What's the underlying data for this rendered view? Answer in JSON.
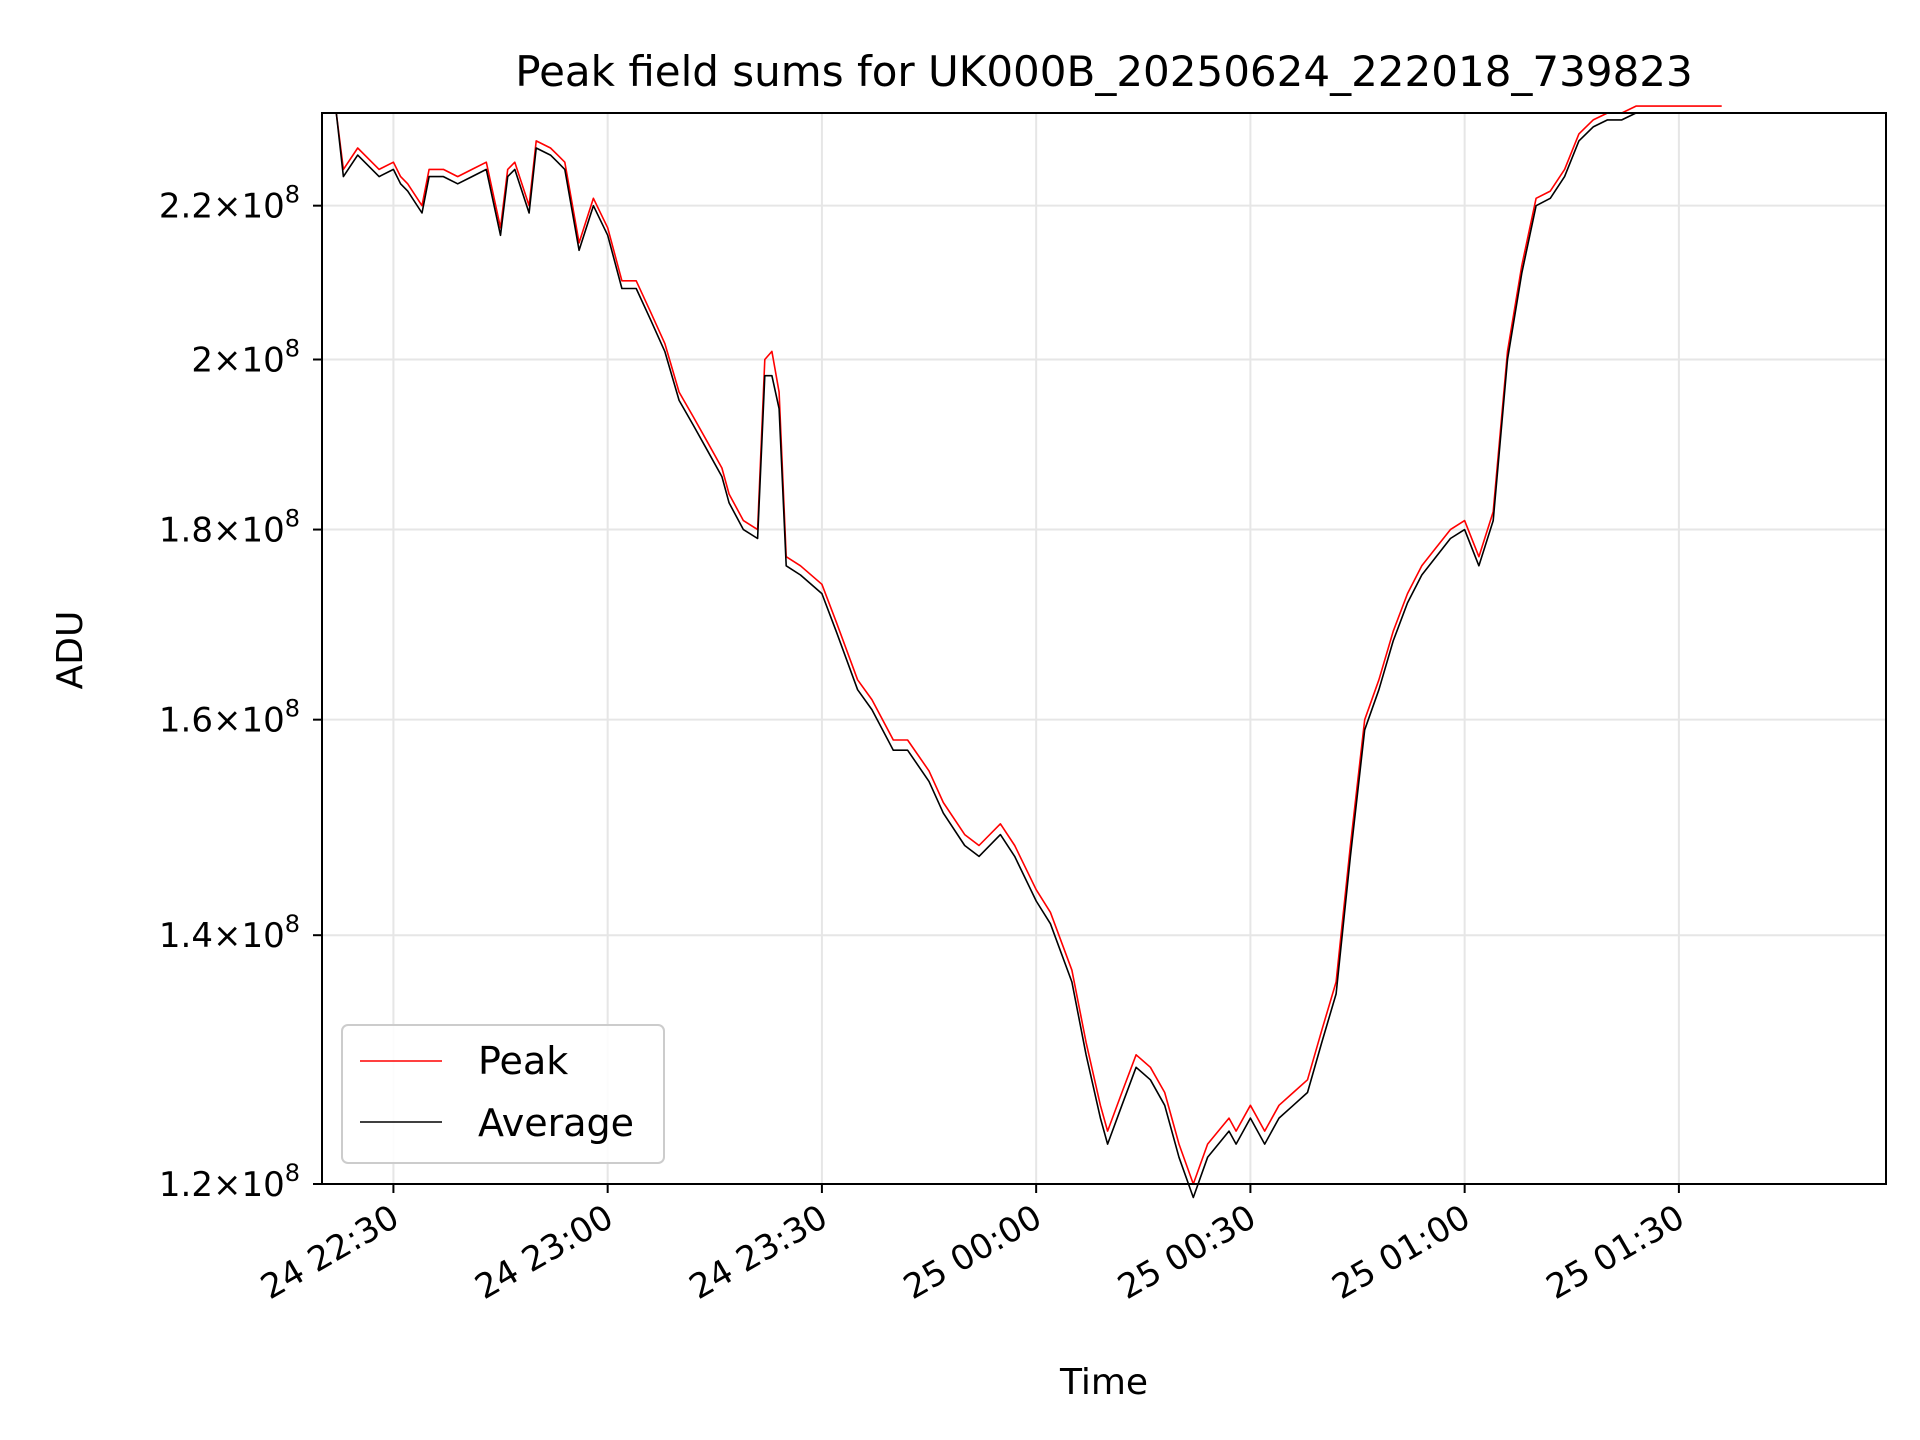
{
  "chart_data": {
    "type": "line",
    "title": "Peak field sums for UK000B_20250624_222018_739823",
    "xlabel": "Time",
    "ylabel": "ADU",
    "yscale": "log",
    "grid": true,
    "legend_position": "lower-left",
    "xlim": [
      "2025-06-24 22:20",
      "2025-06-25 01:59"
    ],
    "ylim": [
      120000000.0,
      233000000.0
    ],
    "x_ticks": [
      "2025-06-24 22:30",
      "2025-06-24 23:00",
      "2025-06-24 23:30",
      "2025-06-25 00:00",
      "2025-06-25 00:30",
      "2025-06-25 01:00",
      "2025-06-25 01:30"
    ],
    "x_tick_labels": [
      "24 22:30",
      "24 23:00",
      "24 23:30",
      "25 00:00",
      "25 00:30",
      "25 01:00",
      "25 01:30"
    ],
    "y_ticks": [
      120000000.0,
      140000000.0,
      160000000.0,
      180000000.0,
      200000000.0,
      220000000.0
    ],
    "y_tick_labels": [
      {
        "mant": "1.2",
        "exp": "8"
      },
      {
        "mant": "1.4",
        "exp": "8"
      },
      {
        "mant": "1.6",
        "exp": "8"
      },
      {
        "mant": "1.8",
        "exp": "8"
      },
      {
        "mant": "2",
        "exp": "8"
      },
      {
        "mant": "2.2",
        "exp": "8"
      }
    ],
    "series": [
      {
        "name": "Peak",
        "color": "#ff0000"
      },
      {
        "name": "Average",
        "color": "#000000"
      }
    ],
    "x": [
      "2025-06-24 22:20",
      "2025-06-24 22:22",
      "2025-06-24 22:23",
      "2025-06-24 22:25",
      "2025-06-24 22:28",
      "2025-06-24 22:30",
      "2025-06-24 22:31",
      "2025-06-24 22:32",
      "2025-06-24 22:34",
      "2025-06-24 22:35",
      "2025-06-24 22:37",
      "2025-06-24 22:39",
      "2025-06-24 22:41",
      "2025-06-24 22:43",
      "2025-06-24 22:45",
      "2025-06-24 22:46",
      "2025-06-24 22:47",
      "2025-06-24 22:49",
      "2025-06-24 22:50",
      "2025-06-24 22:52",
      "2025-06-24 22:53",
      "2025-06-24 22:54",
      "2025-06-24 22:56",
      "2025-06-24 22:58",
      "2025-06-24 23:00",
      "2025-06-24 23:02",
      "2025-06-24 23:04",
      "2025-06-24 23:06",
      "2025-06-24 23:08",
      "2025-06-24 23:10",
      "2025-06-24 23:12",
      "2025-06-24 23:14",
      "2025-06-24 23:16",
      "2025-06-24 23:17",
      "2025-06-24 23:19",
      "2025-06-24 23:21",
      "2025-06-24 23:22",
      "2025-06-24 23:23",
      "2025-06-24 23:24",
      "2025-06-24 23:25",
      "2025-06-24 23:27",
      "2025-06-24 23:30",
      "2025-06-24 23:32",
      "2025-06-24 23:35",
      "2025-06-24 23:37",
      "2025-06-24 23:40",
      "2025-06-24 23:42",
      "2025-06-24 23:45",
      "2025-06-24 23:47",
      "2025-06-24 23:50",
      "2025-06-24 23:52",
      "2025-06-24 23:55",
      "2025-06-24 23:57",
      "2025-06-25 00:00",
      "2025-06-25 00:02",
      "2025-06-25 00:05",
      "2025-06-25 00:07",
      "2025-06-25 00:09",
      "2025-06-25 00:10",
      "2025-06-25 00:12",
      "2025-06-25 00:14",
      "2025-06-25 00:16",
      "2025-06-25 00:18",
      "2025-06-25 00:20",
      "2025-06-25 00:22",
      "2025-06-25 00:24",
      "2025-06-25 00:27",
      "2025-06-25 00:28",
      "2025-06-25 00:30",
      "2025-06-25 00:32",
      "2025-06-25 00:34",
      "2025-06-25 00:36",
      "2025-06-25 00:38",
      "2025-06-25 00:40",
      "2025-06-25 00:42",
      "2025-06-25 00:44",
      "2025-06-25 00:46",
      "2025-06-25 00:48",
      "2025-06-25 00:50",
      "2025-06-25 00:52",
      "2025-06-25 00:54",
      "2025-06-25 00:56",
      "2025-06-25 00:58",
      "2025-06-25 01:00",
      "2025-06-25 01:02",
      "2025-06-25 01:04",
      "2025-06-25 01:06",
      "2025-06-25 01:08",
      "2025-06-25 01:10",
      "2025-06-25 01:12",
      "2025-06-25 01:14",
      "2025-06-25 01:16",
      "2025-06-25 01:18",
      "2025-06-25 01:20",
      "2025-06-25 01:22",
      "2025-06-25 01:24",
      "2025-06-25 01:26",
      "2025-06-25 01:28",
      "2025-06-25 01:30",
      "2025-06-25 01:32",
      "2025-06-25 01:34",
      "2025-06-25 01:36"
    ],
    "peak": [
      233000000.0,
      233000000.0,
      225000000.0,
      228000000.0,
      225000000.0,
      226000000.0,
      224000000.0,
      223000000.0,
      220000000.0,
      225000000.0,
      225000000.0,
      224000000.0,
      225000000.0,
      226000000.0,
      217000000.0,
      225000000.0,
      226000000.0,
      220000000.0,
      229000000.0,
      228000000.0,
      227000000.0,
      226000000.0,
      215000000.0,
      221000000.0,
      217000000.0,
      210000000.0,
      210000000.0,
      206000000.0,
      202000000.0,
      196000000.0,
      193000000.0,
      190000000.0,
      187000000.0,
      184000000.0,
      181000000.0,
      180000000.0,
      200000000.0,
      201000000.0,
      196000000.0,
      177000000.0,
      176000000.0,
      174000000.0,
      170000000.0,
      164000000.0,
      162000000.0,
      158000000.0,
      158000000.0,
      155000000.0,
      152000000.0,
      149000000.0,
      148000000.0,
      150000000.0,
      148000000.0,
      144000000.0,
      142000000.0,
      137000000.0,
      131000000.0,
      126000000.0,
      124000000.0,
      127000000.0,
      130000000.0,
      129000000.0,
      127000000.0,
      123000000.0,
      120000000.0,
      123000000.0,
      125000000.0,
      124000000.0,
      126000000.0,
      124000000.0,
      126000000.0,
      127000000.0,
      128000000.0,
      132000000.0,
      136000000.0,
      148000000.0,
      160000000.0,
      164000000.0,
      169000000.0,
      173000000.0,
      176000000.0,
      178000000.0,
      180000000.0,
      181000000.0,
      177000000.0,
      182000000.0,
      201000000.0,
      212000000.0,
      221000000.0,
      222000000.0,
      225000000.0,
      230000000.0,
      232000000.0,
      233000000.0,
      233000000.0,
      234000000.0,
      234000000.0,
      234000000.0,
      234000000.0,
      234000000.0,
      234000000.0,
      234000000.0
    ],
    "average": [
      233000000.0,
      233000000.0,
      224000000.0,
      227000000.0,
      224000000.0,
      225000000.0,
      223000000.0,
      222000000.0,
      219000000.0,
      224000000.0,
      224000000.0,
      223000000.0,
      224000000.0,
      225000000.0,
      216000000.0,
      224000000.0,
      225000000.0,
      219000000.0,
      228000000.0,
      227000000.0,
      226000000.0,
      225000000.0,
      214000000.0,
      220000000.0,
      216000000.0,
      209000000.0,
      209000000.0,
      205000000.0,
      201000000.0,
      195000000.0,
      192000000.0,
      189000000.0,
      186000000.0,
      183000000.0,
      180000000.0,
      179000000.0,
      198000000.0,
      198000000.0,
      194000000.0,
      176000000.0,
      175000000.0,
      173000000.0,
      169000000.0,
      163000000.0,
      161000000.0,
      157000000.0,
      157000000.0,
      154000000.0,
      151000000.0,
      148000000.0,
      147000000.0,
      149000000.0,
      147000000.0,
      143000000.0,
      141000000.0,
      136000000.0,
      130000000.0,
      125000000.0,
      123000000.0,
      126000000.0,
      129000000.0,
      128000000.0,
      126000000.0,
      122000000.0,
      119000000.0,
      122000000.0,
      124000000.0,
      123000000.0,
      125000000.0,
      123000000.0,
      125000000.0,
      126000000.0,
      127000000.0,
      131000000.0,
      135000000.0,
      147000000.0,
      159000000.0,
      163000000.0,
      168000000.0,
      172000000.0,
      175000000.0,
      177000000.0,
      179000000.0,
      180000000.0,
      176000000.0,
      181000000.0,
      200000000.0,
      211000000.0,
      220000000.0,
      221000000.0,
      224000000.0,
      229000000.0,
      231000000.0,
      232000000.0,
      232000000.0,
      233000000.0,
      233000000.0,
      233000000.0,
      233000000.0,
      233000000.0,
      233000000.0,
      233000000.0
    ]
  }
}
